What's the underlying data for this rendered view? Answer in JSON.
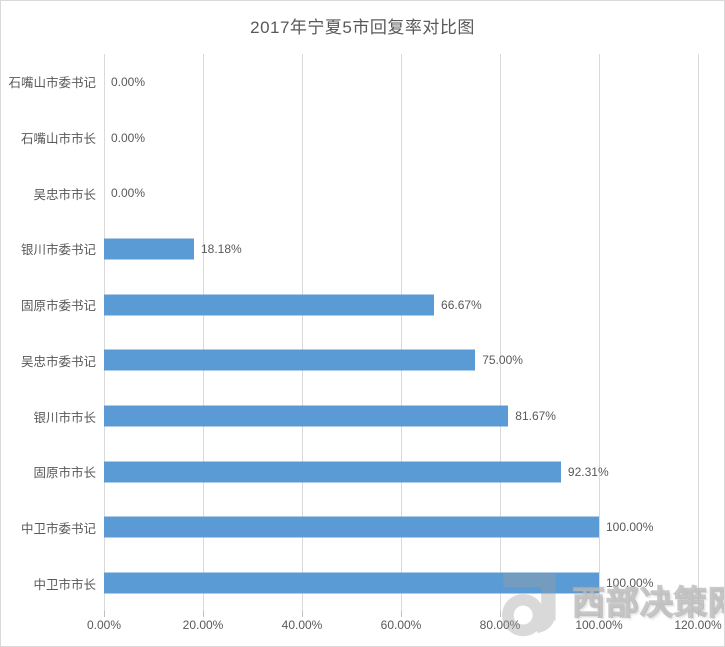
{
  "title": "2017年宁夏5市回复率对比图",
  "chart_data": {
    "type": "bar",
    "orientation": "horizontal",
    "title": "2017年宁夏5市回复率对比图",
    "categories": [
      "石嘴山市委书记",
      "石嘴山市市长",
      "吴忠市市长",
      "银川市委书记",
      "固原市委书记",
      "吴忠市委书记",
      "银川市市长",
      "固原市市长",
      "中卫市委书记",
      "中卫市市长"
    ],
    "values": [
      0,
      0,
      0,
      18.18,
      66.67,
      75.0,
      81.67,
      92.31,
      100.0,
      100.0
    ],
    "data_labels": [
      "0.00%",
      "0.00%",
      "0.00%",
      "18.18%",
      "66.67%",
      "75.00%",
      "81.67%",
      "92.31%",
      "100.00%",
      "100.00%"
    ],
    "x_tick_labels": [
      "0.00%",
      "20.00%",
      "40.00%",
      "60.00%",
      "80.00%",
      "100.00%",
      "120.00%"
    ],
    "xlim": [
      0,
      120
    ],
    "grid": true,
    "legend": "none",
    "bar_color": "#5b9bd5",
    "text_color": "#595959",
    "gridline_color": "#d9d9d9"
  },
  "watermark": {
    "text": "西部决策网",
    "logo": "spiral-j-logo",
    "color": "#a0a0a0"
  }
}
